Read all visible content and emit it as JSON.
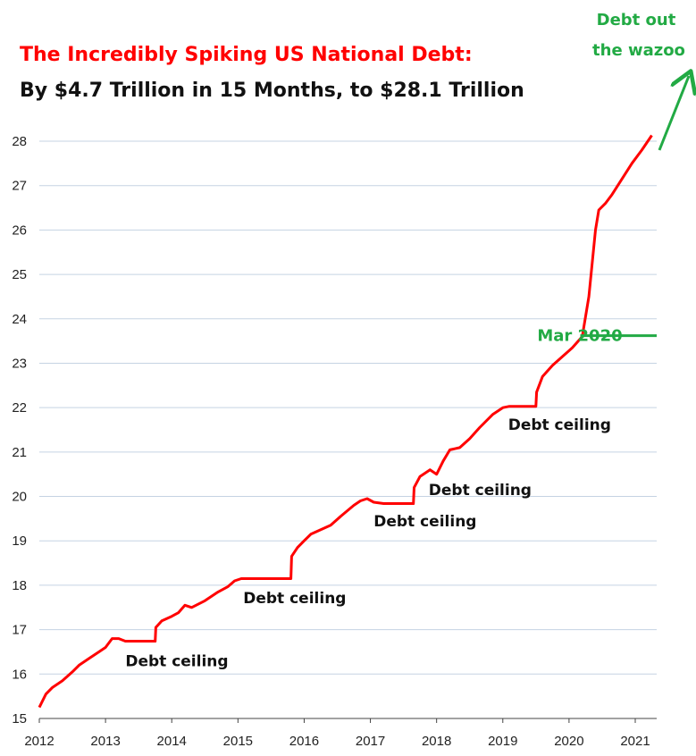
{
  "chart_data": {
    "type": "line",
    "title": "The Incredibly Spiking US National Debt:",
    "subtitle": "By $4.7 Trillion in 15 Months, to $28.1 Trillion",
    "xlabel": "",
    "ylabel": "",
    "xlim": [
      2012,
      2021.35
    ],
    "ylim": [
      15,
      28.2
    ],
    "grid": true,
    "x_ticks": [
      "2012",
      "2013",
      "2014",
      "2015",
      "2016",
      "2017",
      "2018",
      "2019",
      "2020",
      "2021"
    ],
    "y_ticks": [
      "15",
      "16",
      "17",
      "18",
      "19",
      "20",
      "21",
      "22",
      "23",
      "24",
      "25",
      "26",
      "27",
      "28"
    ],
    "series": [
      {
        "name": "",
        "color": "#ff0000",
        "x": [
          2012.0,
          2012.1,
          2012.2,
          2012.35,
          2012.5,
          2012.6,
          2012.75,
          2012.9,
          2013.0,
          2013.1,
          2013.2,
          2013.3,
          2013.75,
          2013.76,
          2013.85,
          2014.0,
          2014.1,
          2014.2,
          2014.3,
          2014.5,
          2014.7,
          2014.85,
          2014.95,
          2015.05,
          2015.8,
          2015.81,
          2015.9,
          2016.0,
          2016.1,
          2016.25,
          2016.4,
          2016.55,
          2016.75,
          2016.85,
          2016.95,
          2017.05,
          2017.2,
          2017.65,
          2017.66,
          2017.75,
          2017.9,
          2018.0,
          2018.1,
          2018.2,
          2018.35,
          2018.5,
          2018.65,
          2018.85,
          2019.0,
          2019.1,
          2019.5,
          2019.51,
          2019.6,
          2019.75,
          2019.9,
          2020.05,
          2020.2,
          2020.3,
          2020.4,
          2020.45,
          2020.55,
          2020.65,
          2020.8,
          2020.95,
          2021.1,
          2021.25
        ],
        "y": [
          15.25,
          15.55,
          15.7,
          15.85,
          16.05,
          16.2,
          16.35,
          16.5,
          16.6,
          16.8,
          16.8,
          16.74,
          16.74,
          17.05,
          17.2,
          17.3,
          17.38,
          17.55,
          17.5,
          17.65,
          17.85,
          17.97,
          18.1,
          18.15,
          18.15,
          18.65,
          18.85,
          19.0,
          19.15,
          19.25,
          19.35,
          19.55,
          19.8,
          19.9,
          19.95,
          19.87,
          19.84,
          19.84,
          20.2,
          20.45,
          20.6,
          20.5,
          20.8,
          21.05,
          21.1,
          21.3,
          21.55,
          21.85,
          22.0,
          22.03,
          22.03,
          22.35,
          22.7,
          22.95,
          23.15,
          23.35,
          23.6,
          24.5,
          26.0,
          26.45,
          26.6,
          26.8,
          27.15,
          27.5,
          27.8,
          28.13
        ]
      }
    ],
    "annotations": [
      {
        "text": "Debt ceiling",
        "x": 2013.3,
        "y": 16.3
      },
      {
        "text": "Debt ceiling",
        "x": 2015.08,
        "y": 17.72
      },
      {
        "text": "Debt ceiling",
        "x": 2017.05,
        "y": 19.45
      },
      {
        "text": "Debt ceiling",
        "x": 2017.88,
        "y": 20.15
      },
      {
        "text": "Debt ceiling",
        "x": 2019.08,
        "y": 21.62
      },
      {
        "text": "Mar 2020",
        "x": 2019.52,
        "y": 23.62
      }
    ],
    "mar2020_line": {
      "x_start": 2020.17,
      "x_end": 2021.35,
      "y": 23.62
    },
    "callout": {
      "line1": "Debt out",
      "line2": "the wazoo"
    },
    "colors": {
      "series": "#ff0000",
      "title": "#ff0000",
      "subtitle": "#111111",
      "annotation_green": "#22aa44",
      "grid": "#c5d3e3"
    }
  }
}
